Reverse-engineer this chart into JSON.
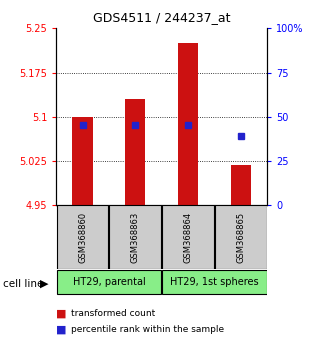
{
  "title": "GDS4511 / 244237_at",
  "samples": [
    "GSM368860",
    "GSM368863",
    "GSM368864",
    "GSM368865"
  ],
  "bar_bottoms": [
    4.95,
    4.95,
    4.95,
    4.95
  ],
  "bar_tops": [
    5.1,
    5.13,
    5.225,
    5.018
  ],
  "percentile_values": [
    5.086,
    5.086,
    5.086,
    5.067
  ],
  "ylim": [
    4.95,
    5.25
  ],
  "y2lim": [
    0,
    100
  ],
  "yticks": [
    4.95,
    5.025,
    5.1,
    5.175,
    5.25
  ],
  "ytick_labels": [
    "4.95",
    "5.025",
    "5.1",
    "5.175",
    "5.25"
  ],
  "y2ticks": [
    0,
    25,
    50,
    75,
    100
  ],
  "y2ticklabels": [
    "0",
    "25",
    "50",
    "75",
    "100%"
  ],
  "bar_color": "#cc1111",
  "marker_color": "#2222cc",
  "cell_lines": [
    "HT29, parental",
    "HT29, 1st spheres"
  ],
  "cell_line_spans": [
    [
      0,
      2
    ],
    [
      2,
      4
    ]
  ],
  "cell_line_bg": "#88ee88",
  "sample_box_bg": "#cccccc",
  "legend_items": [
    "transformed count",
    "percentile rank within the sample"
  ],
  "legend_colors": [
    "#cc1111",
    "#2222cc"
  ],
  "cell_line_label": "cell line"
}
